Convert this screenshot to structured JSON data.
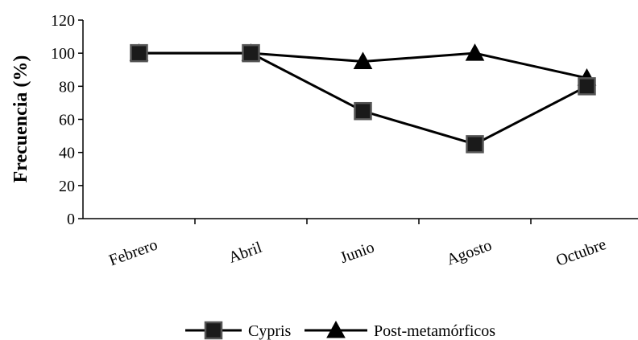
{
  "chart_data": {
    "type": "line",
    "title": "",
    "xlabel": "",
    "ylabel": "Frecuencia (%)",
    "ylim": [
      0,
      120
    ],
    "yticks": [
      0,
      20,
      40,
      60,
      80,
      100,
      120
    ],
    "categories": [
      "Febrero",
      "Abril",
      "Junio",
      "Agosto",
      "Octubre"
    ],
    "series": [
      {
        "name": "Cypris",
        "marker": "square",
        "color": "#000000",
        "values": [
          100,
          100,
          65,
          45,
          80
        ]
      },
      {
        "name": "Post-metamórficos",
        "marker": "triangle",
        "color": "#000000",
        "values": [
          100,
          100,
          95,
          100,
          85
        ]
      }
    ],
    "grid": false,
    "legend_position": "bottom"
  }
}
